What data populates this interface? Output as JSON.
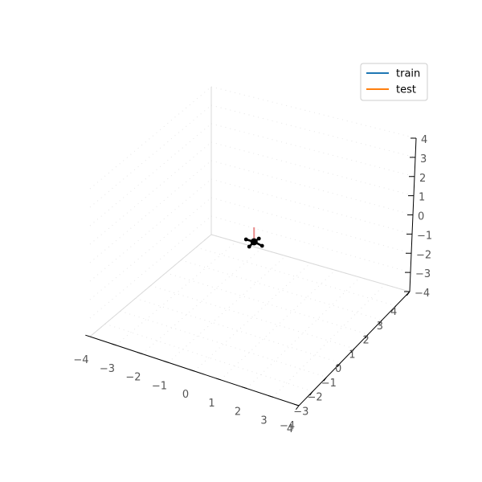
{
  "chart_data": {
    "type": "3d-line",
    "title": "",
    "xlabel": "",
    "ylabel": "",
    "zlabel": "",
    "xlim": [
      -4,
      4
    ],
    "ylim": [
      -4,
      4
    ],
    "zlim": [
      -4,
      4
    ],
    "x_ticks": [
      "−4",
      "−3",
      "−2",
      "−1",
      "0",
      "1",
      "2",
      "3",
      "4"
    ],
    "y_ticks": [
      "−4",
      "−3",
      "−2",
      "−1",
      "0",
      "1",
      "2",
      "3",
      "4"
    ],
    "z_ticks": [
      "−4",
      "−3",
      "−2",
      "−1",
      "0",
      "1",
      "2",
      "3",
      "4"
    ],
    "grid": true,
    "legend_placement": "top-right",
    "series": [
      {
        "name": "train",
        "color": "#1f77b4",
        "points": []
      },
      {
        "name": "test",
        "color": "#ff7f0e",
        "points": []
      }
    ],
    "drone": {
      "position": [
        0,
        0,
        0
      ],
      "body_color": "#000000",
      "marker_color": "#e88a8a"
    }
  }
}
